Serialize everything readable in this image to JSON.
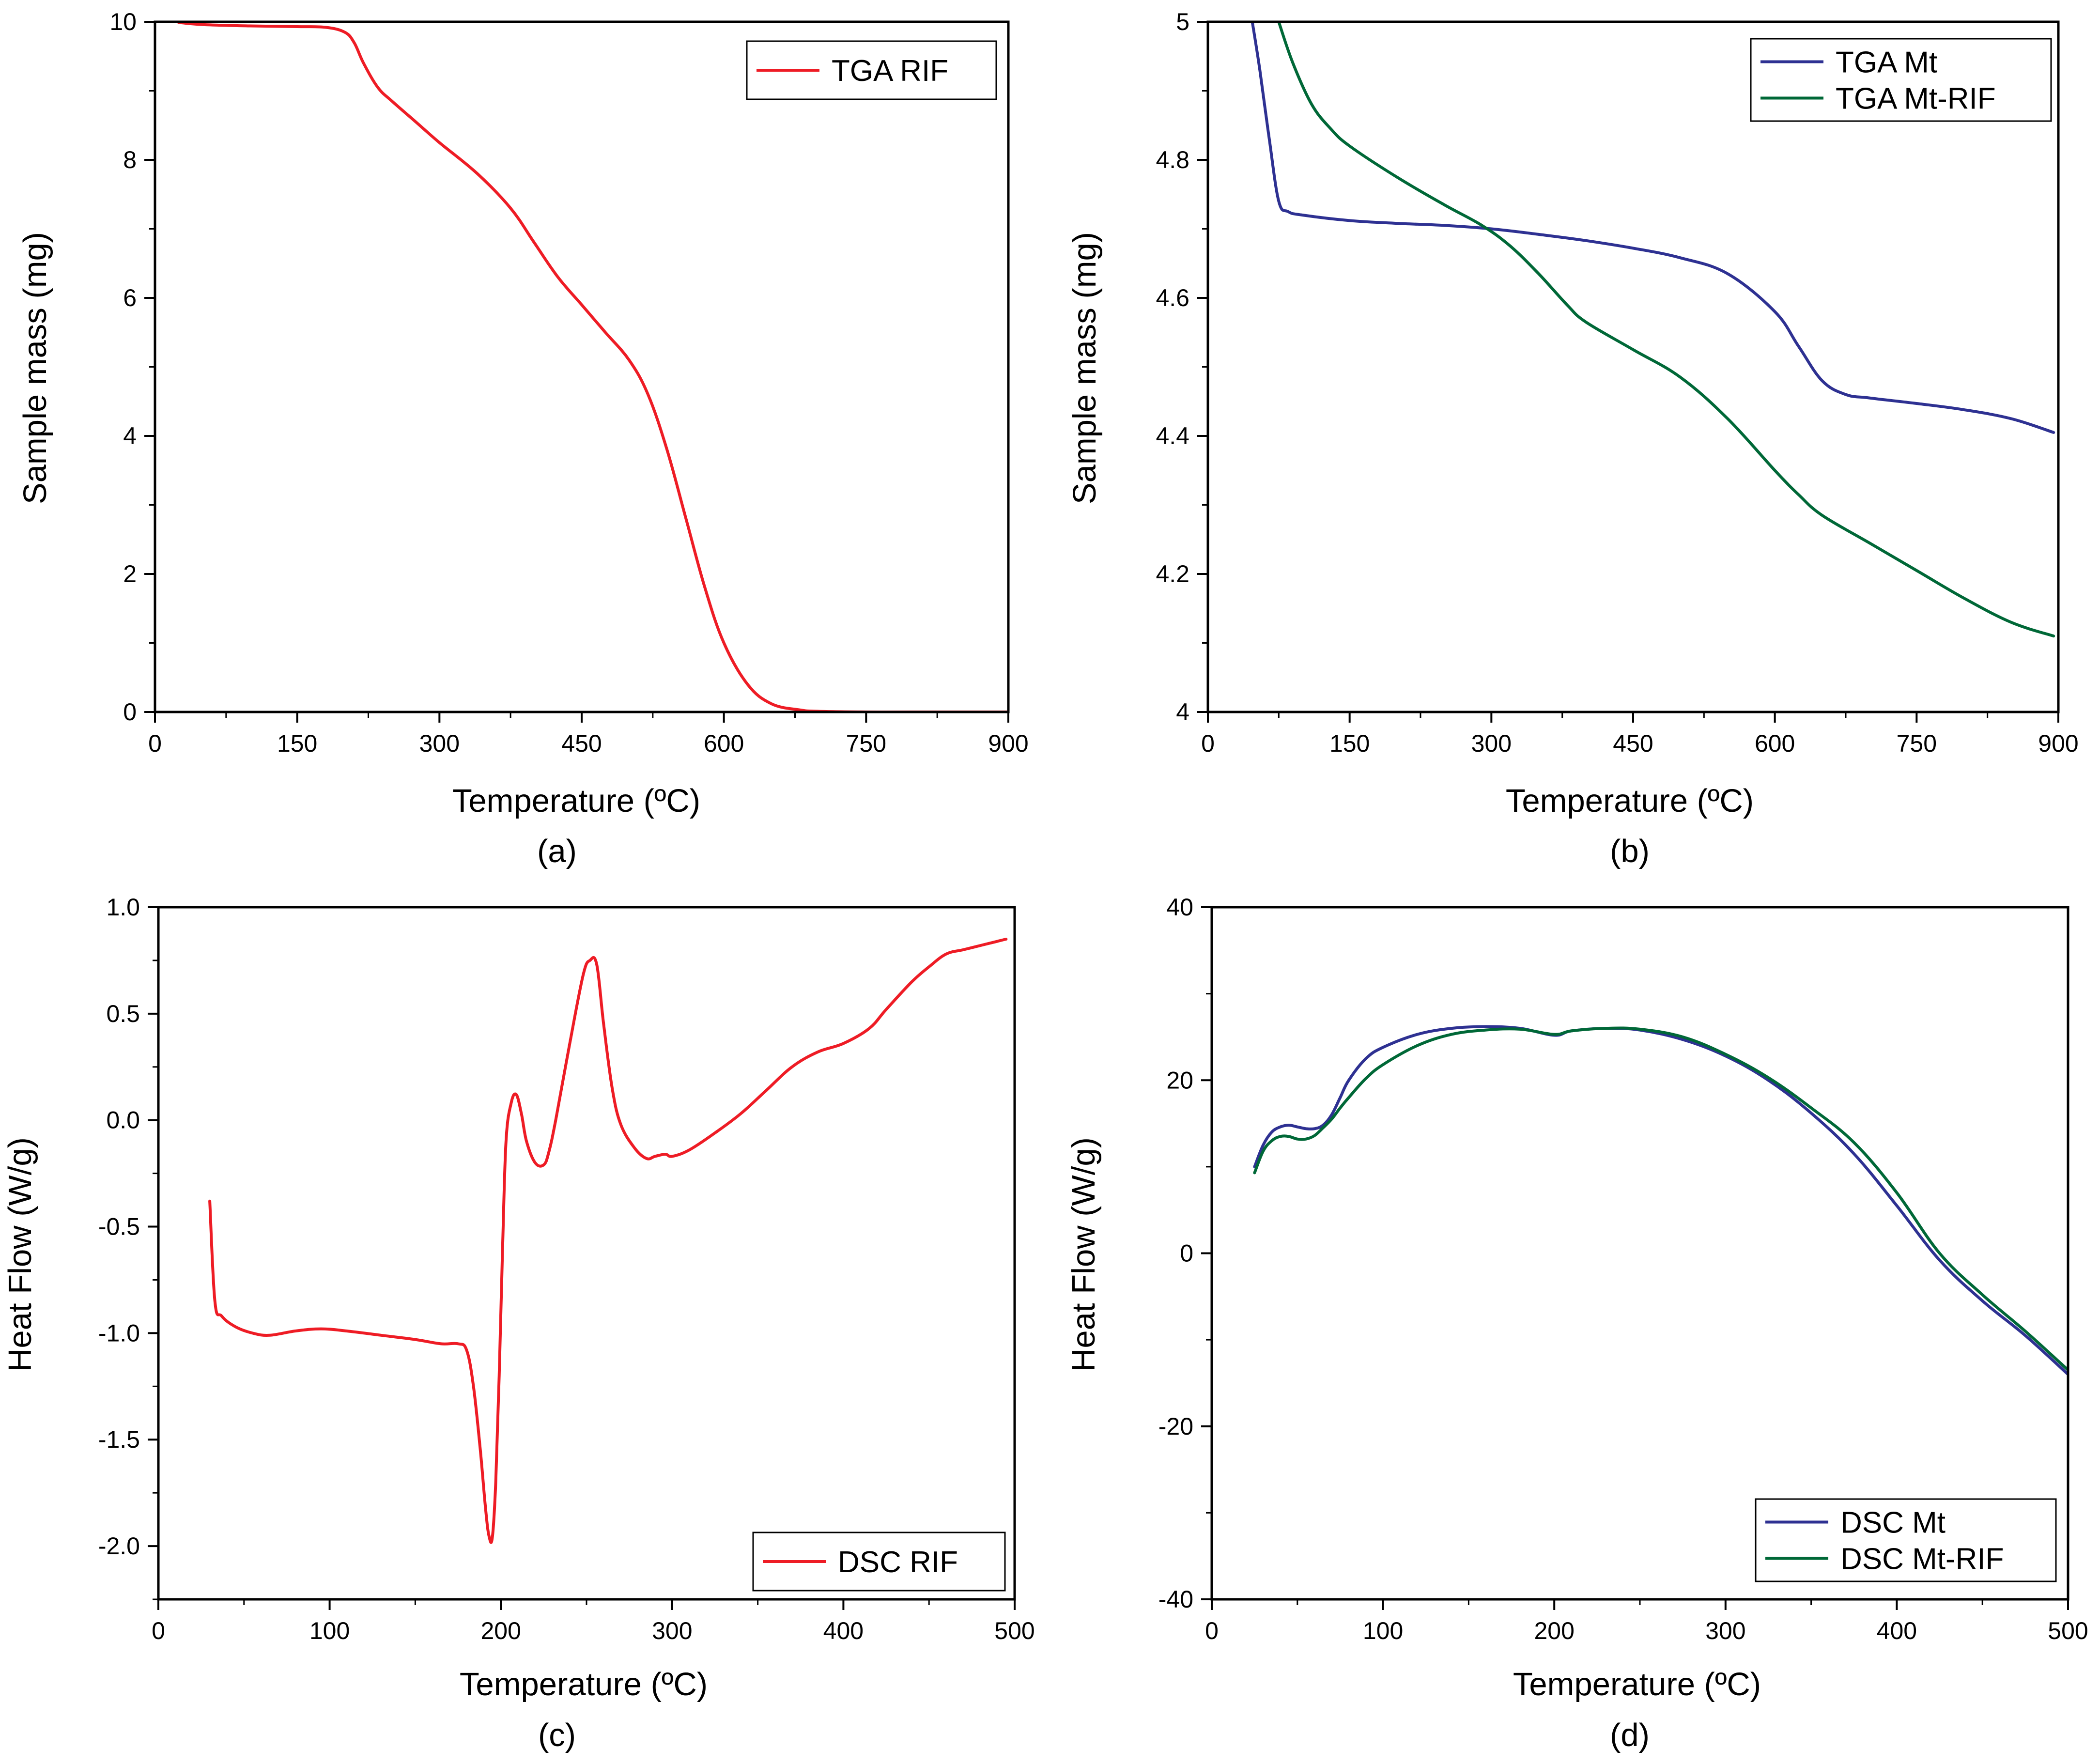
{
  "chart_data": [
    {
      "panel": "(a)",
      "type": "line",
      "xlabel": "Temperature (ºC)",
      "ylabel": "Sample mass (mg)",
      "xlim": [
        0,
        900
      ],
      "ylim": [
        0,
        10
      ],
      "xticks": [
        0,
        150,
        300,
        450,
        600,
        750,
        900
      ],
      "yticks": [
        0,
        2,
        4,
        6,
        8,
        10
      ],
      "legend_position": "top-right",
      "series": [
        {
          "name": "TGA RIF",
          "color": "#ee1c25",
          "x": [
            25,
            50,
            100,
            150,
            180,
            200,
            210,
            220,
            235,
            250,
            275,
            300,
            340,
            375,
            400,
            425,
            450,
            475,
            500,
            520,
            540,
            560,
            580,
            600,
            625,
            650,
            680,
            700,
            750,
            800,
            900
          ],
          "y": [
            9.99,
            9.96,
            9.94,
            9.93,
            9.92,
            9.85,
            9.7,
            9.4,
            9.05,
            8.85,
            8.55,
            8.25,
            7.8,
            7.3,
            6.8,
            6.3,
            5.9,
            5.5,
            5.1,
            4.6,
            3.8,
            2.8,
            1.8,
            1.0,
            0.4,
            0.12,
            0.03,
            0.01,
            0.0,
            0.0,
            0.0
          ]
        }
      ]
    },
    {
      "panel": "(b)",
      "type": "line",
      "xlabel": "Temperature (ºC)",
      "ylabel": "Sample mass (mg)",
      "xlim": [
        0,
        900
      ],
      "ylim": [
        4.0,
        5.0
      ],
      "xticks": [
        0,
        150,
        300,
        450,
        600,
        750,
        900
      ],
      "yticks": [
        4.0,
        4.2,
        4.4,
        4.6,
        4.8,
        5.0
      ],
      "legend_position": "top-right",
      "series": [
        {
          "name": "TGA Mt",
          "color": "#2e3192",
          "x": [
            47,
            55,
            65,
            75,
            85,
            100,
            150,
            200,
            250,
            300,
            350,
            400,
            450,
            500,
            550,
            600,
            625,
            650,
            675,
            700,
            750,
            800,
            850,
            895
          ],
          "y": [
            5.0,
            4.93,
            4.83,
            4.74,
            4.725,
            4.72,
            4.712,
            4.708,
            4.705,
            4.7,
            4.692,
            4.683,
            4.672,
            4.658,
            4.635,
            4.58,
            4.53,
            4.48,
            4.46,
            4.455,
            4.447,
            4.438,
            4.425,
            4.405
          ]
        },
        {
          "name": "TGA Mt-RIF",
          "color": "#006837",
          "x": [
            75,
            90,
            110,
            130,
            150,
            200,
            250,
            290,
            320,
            350,
            380,
            400,
            450,
            500,
            550,
            600,
            625,
            650,
            700,
            750,
            800,
            850,
            895
          ],
          "y": [
            5.0,
            4.94,
            4.88,
            4.845,
            4.82,
            4.775,
            4.735,
            4.705,
            4.675,
            4.635,
            4.59,
            4.565,
            4.525,
            4.485,
            4.425,
            4.35,
            4.315,
            4.285,
            4.245,
            4.205,
            4.165,
            4.13,
            4.11
          ]
        }
      ]
    },
    {
      "panel": "(c)",
      "type": "line",
      "xlabel": "Temperature (ºC)",
      "ylabel": "Heat Flow (W/g)",
      "xlim": [
        0,
        500
      ],
      "ylim": [
        -2.25,
        1.0
      ],
      "xticks": [
        0,
        100,
        200,
        300,
        400,
        500
      ],
      "yticks": [
        -2.0,
        -1.5,
        -1.0,
        -0.5,
        0.0,
        0.5,
        1.0
      ],
      "ytick_labels": [
        "-2.0",
        "-1.5",
        "-1.0",
        "-0.5",
        "0.0",
        "0.5",
        "1.0"
      ],
      "legend_position": "bottom-right",
      "series": [
        {
          "name": "DSC RIF",
          "color": "#ee1c25",
          "x": [
            30,
            33,
            37,
            45,
            55,
            65,
            80,
            95,
            110,
            130,
            150,
            165,
            175,
            180,
            184,
            188,
            191,
            193,
            195,
            197,
            199,
            201,
            203,
            206,
            209,
            212,
            215,
            220,
            225,
            228,
            232,
            240,
            248,
            252,
            256,
            260,
            265,
            270,
            278,
            285,
            290,
            296,
            300,
            310,
            325,
            340,
            355,
            370,
            385,
            400,
            415,
            425,
            440,
            450,
            460,
            470,
            480,
            490,
            495
          ],
          "y": [
            -0.38,
            -0.85,
            -0.92,
            -0.97,
            -1.0,
            -1.01,
            -0.99,
            -0.98,
            -0.99,
            -1.01,
            -1.03,
            -1.05,
            -1.05,
            -1.08,
            -1.25,
            -1.55,
            -1.82,
            -1.95,
            -1.96,
            -1.7,
            -1.2,
            -0.6,
            -0.1,
            0.08,
            0.12,
            0.03,
            -0.1,
            -0.2,
            -0.21,
            -0.15,
            0.0,
            0.35,
            0.68,
            0.75,
            0.73,
            0.45,
            0.15,
            -0.02,
            -0.13,
            -0.18,
            -0.17,
            -0.16,
            -0.17,
            -0.14,
            -0.06,
            0.03,
            0.14,
            0.25,
            0.32,
            0.36,
            0.43,
            0.52,
            0.65,
            0.72,
            0.78,
            0.8,
            0.82,
            0.84,
            0.85
          ]
        }
      ]
    },
    {
      "panel": "(d)",
      "type": "line",
      "xlabel": "Temperature (ºC)",
      "ylabel": "Heat Flow (W/g)",
      "xlim": [
        0,
        500
      ],
      "ylim": [
        -40,
        40
      ],
      "xticks": [
        0,
        100,
        200,
        300,
        400,
        500
      ],
      "yticks": [
        -40,
        -20,
        0,
        20,
        40
      ],
      "legend_position": "bottom-right",
      "series": [
        {
          "name": "DSC Mt",
          "color": "#2e3192",
          "x": [
            25,
            30,
            35,
            40,
            45,
            50,
            55,
            60,
            65,
            70,
            75,
            80,
            90,
            100,
            120,
            140,
            160,
            180,
            200,
            210,
            230,
            250,
            275,
            300,
            325,
            350,
            375,
            400,
            425,
            450,
            475,
            500
          ],
          "y": [
            10.0,
            12.5,
            14.0,
            14.6,
            14.8,
            14.6,
            14.4,
            14.4,
            14.8,
            16.0,
            18.0,
            20.0,
            22.5,
            23.8,
            25.3,
            26.0,
            26.2,
            26.0,
            25.2,
            25.7,
            26.0,
            25.8,
            24.7,
            22.8,
            20.0,
            16.2,
            11.5,
            5.5,
            -0.8,
            -5.5,
            -9.5,
            -14.0
          ]
        },
        {
          "name": "DSC Mt-RIF",
          "color": "#006837",
          "x": [
            25,
            30,
            35,
            40,
            45,
            50,
            55,
            60,
            65,
            70,
            75,
            80,
            90,
            100,
            120,
            140,
            160,
            180,
            200,
            210,
            230,
            250,
            275,
            300,
            325,
            350,
            375,
            400,
            425,
            450,
            475,
            500
          ],
          "y": [
            9.3,
            11.8,
            13.0,
            13.5,
            13.5,
            13.2,
            13.2,
            13.6,
            14.5,
            15.5,
            16.8,
            18.0,
            20.2,
            21.8,
            24.0,
            25.3,
            25.8,
            25.9,
            25.3,
            25.7,
            26.0,
            25.9,
            25.0,
            23.0,
            20.3,
            16.8,
            12.8,
            7.0,
            0.0,
            -4.8,
            -9.0,
            -13.5
          ]
        }
      ]
    }
  ]
}
